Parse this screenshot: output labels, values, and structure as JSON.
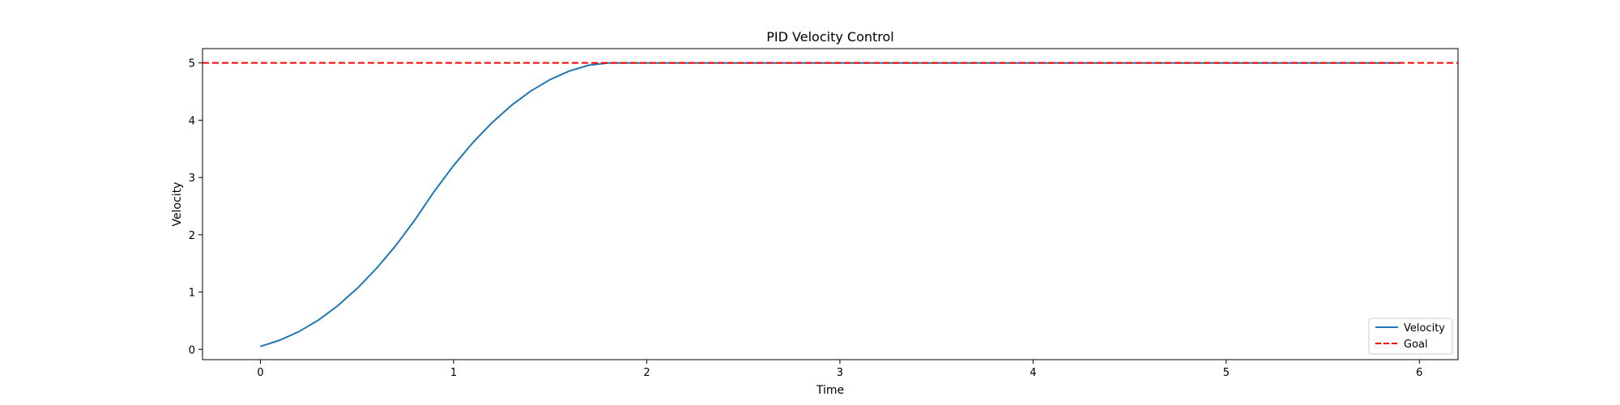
{
  "chart_data": {
    "type": "line",
    "title": "PID Velocity Control",
    "xlabel": "Time",
    "ylabel": "Velocity",
    "xlim": [
      -0.3,
      6.2
    ],
    "ylim": [
      -0.18,
      5.25
    ],
    "xticks": [
      0,
      1,
      2,
      3,
      4,
      5,
      6
    ],
    "yticks": [
      0,
      1,
      2,
      3,
      4,
      5
    ],
    "grid": false,
    "legend_position": "lower-right",
    "series": [
      {
        "name": "Velocity",
        "color": "#1f77b4",
        "style": "solid",
        "x": [
          0,
          0.1,
          0.2,
          0.3,
          0.4,
          0.5,
          0.6,
          0.7,
          0.8,
          0.9,
          1.0,
          1.1,
          1.2,
          1.3,
          1.4,
          1.5,
          1.6,
          1.7,
          1.8,
          1.9,
          2.0,
          2.5,
          3.0,
          3.5,
          4.0,
          4.5,
          5.0,
          5.5,
          5.9
        ],
        "y": [
          0.05,
          0.16,
          0.31,
          0.51,
          0.76,
          1.06,
          1.41,
          1.81,
          2.26,
          2.76,
          3.21,
          3.61,
          3.96,
          4.26,
          4.51,
          4.71,
          4.86,
          4.96,
          5.0,
          5.0,
          5.0,
          5.0,
          5.0,
          5.0,
          5.0,
          5.0,
          5.0,
          5.0,
          5.0
        ]
      },
      {
        "name": "Goal",
        "color": "#ff0000",
        "style": "dashed",
        "value": 5
      }
    ]
  }
}
